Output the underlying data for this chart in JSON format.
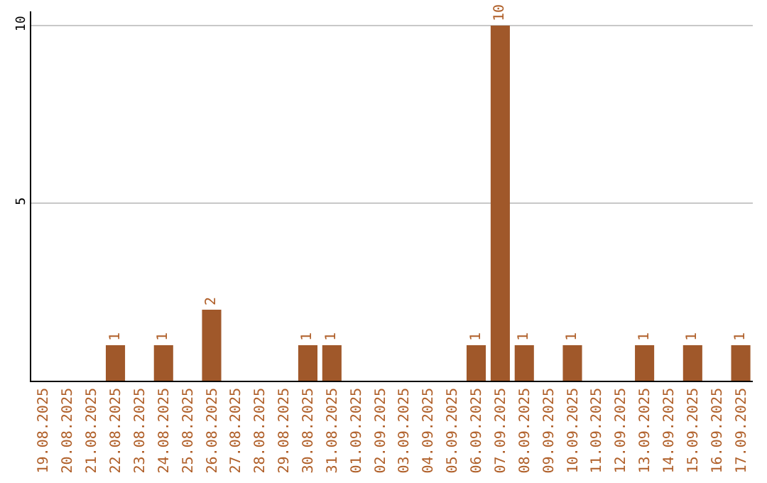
{
  "chart_data": {
    "type": "bar",
    "categories": [
      "19.08.2025",
      "20.08.2025",
      "21.08.2025",
      "22.08.2025",
      "23.08.2025",
      "24.08.2025",
      "25.08.2025",
      "26.08.2025",
      "27.08.2025",
      "28.08.2025",
      "29.08.2025",
      "30.08.2025",
      "31.08.2025",
      "01.09.2025",
      "02.09.2025",
      "03.09.2025",
      "04.09.2025",
      "05.09.2025",
      "06.09.2025",
      "07.09.2025",
      "08.09.2025",
      "09.09.2025",
      "10.09.2025",
      "11.09.2025",
      "12.09.2025",
      "13.09.2025",
      "14.09.2025",
      "15.09.2025",
      "16.09.2025",
      "17.09.2025"
    ],
    "values": [
      0,
      0,
      0,
      1,
      0,
      1,
      0,
      2,
      0,
      0,
      0,
      1,
      1,
      0,
      0,
      0,
      0,
      0,
      1,
      10,
      1,
      0,
      1,
      0,
      0,
      1,
      0,
      1,
      0,
      1
    ],
    "value_labels": [
      null,
      null,
      null,
      "1",
      null,
      "1",
      null,
      "2",
      null,
      null,
      null,
      "1",
      "1",
      null,
      null,
      null,
      null,
      null,
      "1",
      "10",
      "1",
      null,
      "1",
      null,
      null,
      "1",
      null,
      "1",
      null,
      "1"
    ],
    "color": "#a0582a",
    "ylim": [
      0,
      10.4
    ],
    "yticks": [
      5,
      10
    ],
    "grid": "y"
  }
}
